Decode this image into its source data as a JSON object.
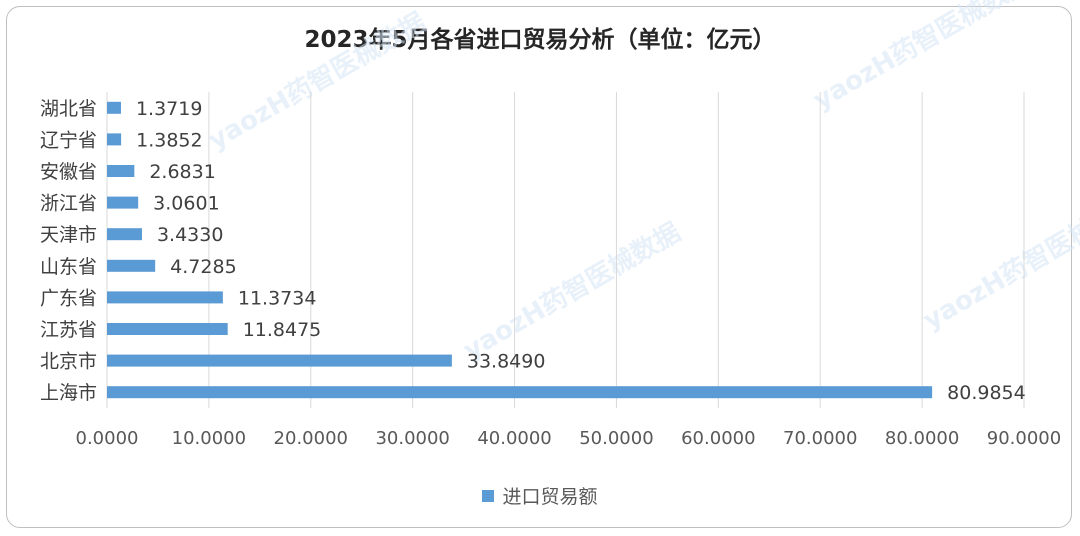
{
  "chart_data": {
    "type": "bar",
    "orientation": "horizontal",
    "title": "2023年5月各省进口贸易分析（单位：亿元）",
    "categories": [
      "上海市",
      "北京市",
      "江苏省",
      "广东省",
      "山东省",
      "天津市",
      "浙江省",
      "安徽省",
      "辽宁省",
      "湖北省"
    ],
    "series": [
      {
        "name": "进口贸易额",
        "color": "#5b9bd5",
        "values": [
          80.9854,
          33.849,
          11.8475,
          11.3734,
          4.7285,
          3.433,
          3.0601,
          2.6831,
          1.3852,
          1.3719
        ],
        "labels": [
          "80.9854",
          "33.8490",
          "11.8475",
          "11.3734",
          "4.7285",
          "3.4330",
          "3.0601",
          "2.6831",
          "1.3852",
          "1.3719"
        ]
      }
    ],
    "xlim": [
      0,
      90
    ],
    "xticks": [
      "0.0000",
      "10.0000",
      "20.0000",
      "30.0000",
      "40.0000",
      "50.0000",
      "60.0000",
      "70.0000",
      "80.0000",
      "90.0000"
    ],
    "grid": true,
    "legend_position": "bottom",
    "watermark": "yaozH药智医械数据"
  }
}
